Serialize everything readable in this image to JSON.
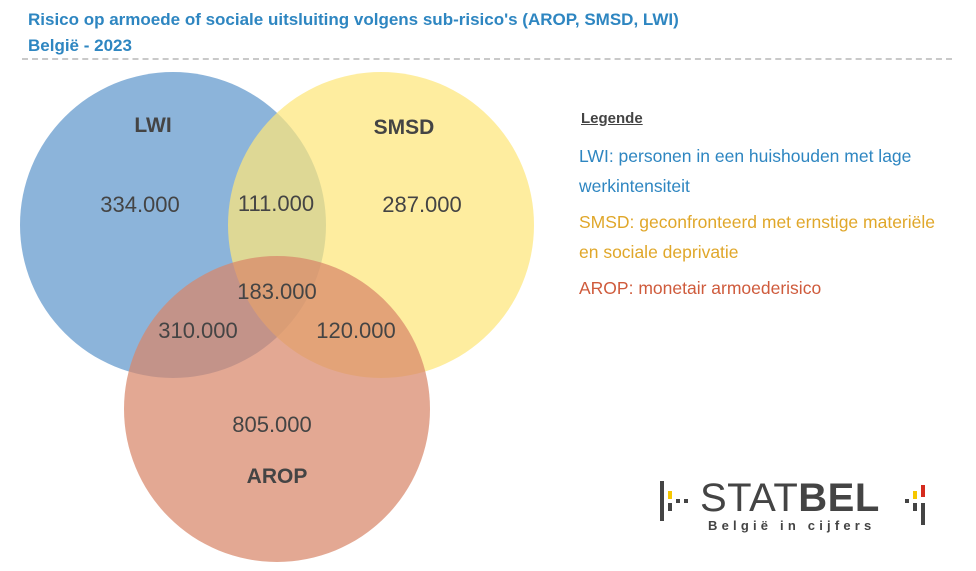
{
  "header": {
    "title": "Risico op armoede of sociale uitsluiting volgens sub-risico's (AROP, SMSD, LWI)",
    "subtitle": "België - 2023"
  },
  "venn": {
    "sets": [
      {
        "name": "LWI",
        "color": "#6c9fcf"
      },
      {
        "name": "SMSD",
        "color": "#fde67a"
      },
      {
        "name": "AROP",
        "color": "#d8866a"
      }
    ],
    "regions": {
      "lwi_only": "334.000",
      "smsd_only": "287.000",
      "arop_only": "805.000",
      "lwi_smsd": "111.000",
      "lwi_arop": "310.000",
      "smsd_arop": "120.000",
      "all_three": "183.000"
    }
  },
  "legend": {
    "title": "Legende",
    "items": [
      {
        "text": "LWI: personen in een huishouden met lage werkintensiteit",
        "color": "#2e86c1"
      },
      {
        "text": "SMSD: geconfronteerd met ernstige materiële en sociale deprivatie",
        "color": "#e0a72a"
      },
      {
        "text": "AROP: monetair armoederisico",
        "color": "#cf5b3c"
      }
    ]
  },
  "logo": {
    "word_light": "STAT",
    "word_bold": "BEL",
    "tagline": "België in cijfers",
    "colors": [
      "#444444",
      "#f6c700",
      "#d52b1e"
    ]
  }
}
